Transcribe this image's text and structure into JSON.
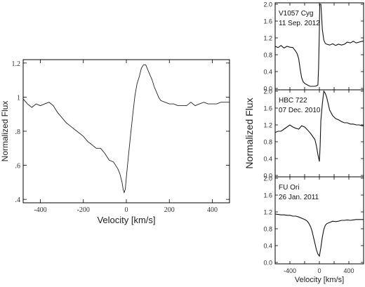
{
  "chart_data": [
    {
      "type": "line",
      "xlabel": "Velocity [km/s]",
      "ylabel": "Normalized Flux",
      "xlim": [
        -480,
        480
      ],
      "ylim": [
        0.38,
        1.22
      ],
      "xticks": [
        -400,
        -200,
        0,
        200,
        400
      ],
      "xtick_labels": [
        "-400",
        "-200",
        "0",
        "200",
        "400"
      ],
      "yticks": [
        0.4,
        0.6,
        0.8,
        1.0,
        1.2
      ],
      "ytick_labels": [
        ".4",
        ".6",
        ".8",
        "1",
        "1.2"
      ],
      "series": [
        {
          "x": [
            -480,
            -460,
            -440,
            -420,
            -400,
            -380,
            -360,
            -340,
            -320,
            -300,
            -280,
            -260,
            -240,
            -220,
            -200,
            -180,
            -160,
            -140,
            -120,
            -100,
            -80,
            -60,
            -40,
            -30,
            -20,
            -15,
            -10,
            -5,
            0,
            10,
            20,
            30,
            40,
            50,
            60,
            70,
            80,
            90,
            100,
            110,
            120,
            130,
            140,
            150,
            160,
            180,
            200,
            220,
            240,
            260,
            280,
            300,
            320,
            340,
            360,
            380,
            400,
            420,
            440,
            460,
            480
          ],
          "y": [
            0.99,
            0.96,
            0.94,
            0.96,
            0.95,
            0.96,
            0.97,
            0.95,
            0.91,
            0.88,
            0.85,
            0.83,
            0.81,
            0.79,
            0.77,
            0.74,
            0.72,
            0.7,
            0.7,
            0.67,
            0.63,
            0.62,
            0.58,
            0.55,
            0.5,
            0.46,
            0.44,
            0.46,
            0.53,
            0.66,
            0.78,
            0.9,
            1.01,
            1.08,
            1.12,
            1.17,
            1.19,
            1.19,
            1.16,
            1.13,
            1.1,
            1.06,
            1.03,
            1.0,
            0.98,
            0.97,
            0.96,
            0.96,
            0.95,
            0.95,
            0.95,
            0.97,
            0.95,
            0.96,
            0.97,
            0.96,
            0.96,
            0.96,
            0.97,
            0.97,
            0.97
          ]
        }
      ]
    },
    {
      "type": "line",
      "annotation": [
        "V1057 Cyg",
        "11 Sep. 2012"
      ],
      "ylabel": "Normalized Flux",
      "xlim": [
        -600,
        600
      ],
      "ylim": [
        0.0,
        2.0
      ],
      "yticks": [
        0.0,
        0.4,
        0.8,
        1.2,
        1.6,
        2.0
      ],
      "ytick_labels": [
        "0.0",
        "0.4",
        "0.8",
        "1.2",
        "1.6",
        "2.0"
      ],
      "series": [
        {
          "x": [
            -600,
            -560,
            -520,
            -480,
            -440,
            -400,
            -360,
            -320,
            -300,
            -280,
            -260,
            -240,
            -220,
            -200,
            -180,
            -160,
            -140,
            -120,
            -100,
            -80,
            -60,
            -40,
            -20,
            -10,
            0,
            5,
            10,
            20,
            30,
            40,
            60,
            80,
            100,
            140,
            180,
            220,
            260,
            300,
            340,
            380,
            420,
            460,
            500,
            540,
            580,
            600
          ],
          "y": [
            1.0,
            0.97,
            1.02,
            0.96,
            1.0,
            0.98,
            0.97,
            0.88,
            0.82,
            0.7,
            0.45,
            0.25,
            0.16,
            0.12,
            0.1,
            0.08,
            0.06,
            0.05,
            0.05,
            0.05,
            0.05,
            0.06,
            0.08,
            0.5,
            1.4,
            2.0,
            2.0,
            2.0,
            1.75,
            1.4,
            1.15,
            1.07,
            1.05,
            1.03,
            1.06,
            1.02,
            1.05,
            1.03,
            1.05,
            1.1,
            1.08,
            1.12,
            1.08,
            1.1,
            1.12,
            1.12
          ]
        }
      ]
    },
    {
      "type": "line",
      "annotation": [
        "HBC 722",
        "07 Dec. 2010"
      ],
      "ylabel": "Normalized Flux",
      "xlim": [
        -600,
        600
      ],
      "ylim": [
        0.0,
        2.0
      ],
      "yticks": [
        0.0,
        0.4,
        0.8,
        1.2,
        1.6,
        2.0
      ],
      "ytick_labels": [
        "0.0",
        "0.4",
        "0.8",
        "1.2",
        "1.6",
        "2.0"
      ],
      "series": [
        {
          "x": [
            -600,
            -560,
            -520,
            -480,
            -440,
            -400,
            -360,
            -320,
            -280,
            -240,
            -200,
            -160,
            -120,
            -100,
            -80,
            -60,
            -40,
            -20,
            0,
            10,
            20,
            40,
            60,
            80,
            100,
            120,
            140,
            180,
            220,
            260,
            300,
            340,
            380,
            420,
            460,
            500,
            540,
            580,
            600
          ],
          "y": [
            1.02,
            1.05,
            1.05,
            1.1,
            1.15,
            1.2,
            1.15,
            1.12,
            1.1,
            1.18,
            1.15,
            1.08,
            1.0,
            0.95,
            0.9,
            0.85,
            0.7,
            0.5,
            0.33,
            0.7,
            1.3,
            1.7,
            2.0,
            1.95,
            1.85,
            1.7,
            1.55,
            1.42,
            1.35,
            1.32,
            1.28,
            1.25,
            1.25,
            1.22,
            1.22,
            1.2,
            1.2,
            1.18,
            1.18
          ]
        }
      ]
    },
    {
      "type": "line",
      "annotation": [
        "FU Ori",
        "26 Jan. 2011"
      ],
      "xlabel": "Velocity [km/s]",
      "ylabel": "Normalized Flux",
      "xlim": [
        -600,
        600
      ],
      "ylim": [
        0.0,
        2.0
      ],
      "xticks": [
        -400,
        0,
        400
      ],
      "xtick_labels": [
        "-400",
        "0",
        "400"
      ],
      "yticks": [
        0.0,
        0.4,
        0.8,
        1.2,
        1.6,
        2.0
      ],
      "ytick_labels": [
        "0.0",
        "0.4",
        "0.8",
        "1.2",
        "1.6",
        "2.0"
      ],
      "series": [
        {
          "x": [
            -600,
            -560,
            -520,
            -480,
            -440,
            -400,
            -360,
            -320,
            -280,
            -240,
            -200,
            -180,
            -160,
            -140,
            -120,
            -100,
            -80,
            -60,
            -40,
            -20,
            0,
            20,
            40,
            60,
            80,
            100,
            140,
            180,
            220,
            260,
            300,
            340,
            380,
            420,
            460,
            500,
            540,
            580,
            600
          ],
          "y": [
            1.15,
            1.14,
            1.13,
            1.13,
            1.12,
            1.12,
            1.1,
            1.1,
            1.08,
            1.05,
            1.02,
            1.0,
            0.97,
            0.92,
            0.85,
            0.75,
            0.6,
            0.45,
            0.3,
            0.2,
            0.15,
            0.35,
            0.6,
            0.78,
            0.88,
            0.92,
            0.95,
            0.98,
            0.97,
            0.98,
            1.0,
            1.0,
            1.01,
            1.0,
            1.01,
            1.02,
            1.02,
            1.02,
            1.02
          ]
        }
      ]
    }
  ]
}
